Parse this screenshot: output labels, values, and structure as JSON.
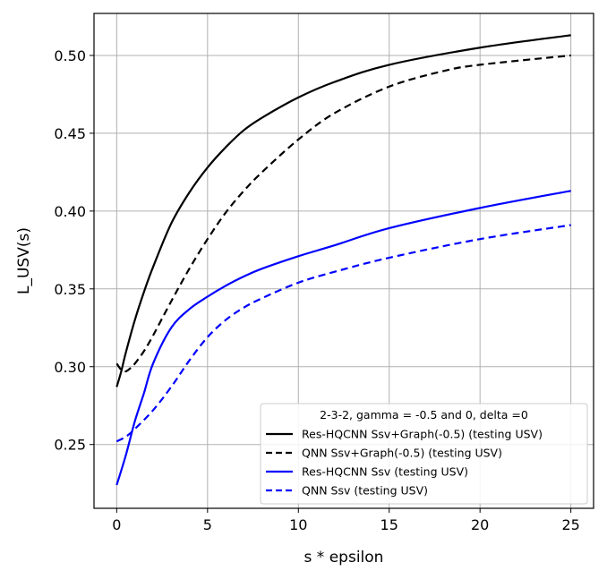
{
  "chart_data": {
    "type": "line",
    "xlabel": "s * epsilon",
    "ylabel": "L_USV(s)",
    "xlim": [
      -1.25,
      26.25
    ],
    "ylim": [
      0.209,
      0.527
    ],
    "xticks": [
      0,
      5,
      10,
      15,
      20,
      25
    ],
    "yticks": [
      0.25,
      0.3,
      0.35,
      0.4,
      0.45,
      0.5
    ],
    "xtick_labels": [
      "0",
      "5",
      "10",
      "15",
      "20",
      "25"
    ],
    "ytick_labels": [
      "0.25",
      "0.30",
      "0.35",
      "0.40",
      "0.45",
      "0.50"
    ],
    "grid": true,
    "legend": {
      "placement": "lower-right",
      "title": "2-3-2, gamma = -0.5 and 0, delta =0"
    },
    "series": [
      {
        "name": "Res-HQCNN Ssv+Graph(-0.5) (testing USV)",
        "color": "#000000",
        "dash": "solid",
        "points": [
          [
            0,
            0.287
          ],
          [
            0.25,
            0.297
          ],
          [
            0.5,
            0.309
          ],
          [
            1,
            0.33
          ],
          [
            1.5,
            0.348
          ],
          [
            2,
            0.364
          ],
          [
            3,
            0.392
          ],
          [
            4,
            0.412
          ],
          [
            5,
            0.428
          ],
          [
            6,
            0.441
          ],
          [
            7,
            0.452
          ],
          [
            8,
            0.46
          ],
          [
            10,
            0.473
          ],
          [
            12,
            0.483
          ],
          [
            15,
            0.494
          ],
          [
            20,
            0.505
          ],
          [
            25,
            0.513
          ]
        ]
      },
      {
        "name": "QNN Ssv+Graph(-0.5) (testing USV)",
        "color": "#000000",
        "dash": "dashed",
        "points": [
          [
            0,
            0.302
          ],
          [
            0.25,
            0.298
          ],
          [
            0.5,
            0.297
          ],
          [
            0.75,
            0.299
          ],
          [
            1,
            0.302
          ],
          [
            1.5,
            0.31
          ],
          [
            2,
            0.32
          ],
          [
            3,
            0.342
          ],
          [
            4,
            0.363
          ],
          [
            5,
            0.382
          ],
          [
            6,
            0.399
          ],
          [
            7,
            0.413
          ],
          [
            8,
            0.425
          ],
          [
            10,
            0.446
          ],
          [
            12,
            0.463
          ],
          [
            15,
            0.48
          ],
          [
            18,
            0.49
          ],
          [
            20,
            0.494
          ],
          [
            25,
            0.5
          ]
        ]
      },
      {
        "name": "Res-HQCNN Ssv (testing USV)",
        "color": "#0000ff",
        "dash": "solid",
        "points": [
          [
            0,
            0.224
          ],
          [
            0.5,
            0.243
          ],
          [
            1,
            0.265
          ],
          [
            1.5,
            0.283
          ],
          [
            2,
            0.302
          ],
          [
            3,
            0.325
          ],
          [
            4,
            0.337
          ],
          [
            5,
            0.345
          ],
          [
            6,
            0.352
          ],
          [
            7,
            0.358
          ],
          [
            8,
            0.363
          ],
          [
            10,
            0.371
          ],
          [
            12,
            0.378
          ],
          [
            15,
            0.389
          ],
          [
            20,
            0.402
          ],
          [
            25,
            0.413
          ]
        ]
      },
      {
        "name": "QNN Ssv (testing USV)",
        "color": "#0000ff",
        "dash": "dashed",
        "points": [
          [
            0,
            0.252
          ],
          [
            0.5,
            0.255
          ],
          [
            1,
            0.26
          ],
          [
            2,
            0.272
          ],
          [
            3,
            0.287
          ],
          [
            4,
            0.304
          ],
          [
            5,
            0.319
          ],
          [
            6,
            0.33
          ],
          [
            7,
            0.338
          ],
          [
            8,
            0.344
          ],
          [
            10,
            0.354
          ],
          [
            12,
            0.361
          ],
          [
            15,
            0.37
          ],
          [
            20,
            0.382
          ],
          [
            25,
            0.391
          ]
        ]
      }
    ]
  }
}
